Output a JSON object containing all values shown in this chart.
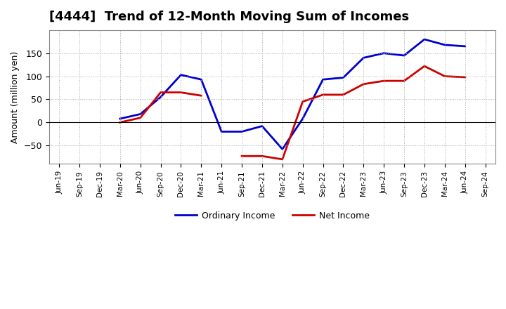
{
  "title": "[4444]  Trend of 12-Month Moving Sum of Incomes",
  "ylabel": "Amount (million yen)",
  "x_labels": [
    "Jun-19",
    "Sep-19",
    "Dec-19",
    "Mar-20",
    "Jun-20",
    "Sep-20",
    "Dec-20",
    "Mar-21",
    "Jun-21",
    "Sep-21",
    "Dec-21",
    "Mar-22",
    "Jun-22",
    "Sep-22",
    "Dec-22",
    "Mar-23",
    "Jun-23",
    "Sep-23",
    "Dec-23",
    "Mar-24",
    "Jun-24",
    "Sep-24"
  ],
  "ordinary_income": [
    null,
    null,
    null,
    8,
    18,
    55,
    103,
    93,
    -20,
    -20,
    -8,
    -58,
    8,
    93,
    97,
    140,
    150,
    145,
    180,
    168,
    165,
    null
  ],
  "net_income": [
    null,
    null,
    null,
    0,
    10,
    65,
    65,
    58,
    null,
    -73,
    -73,
    -80,
    45,
    60,
    60,
    83,
    90,
    90,
    122,
    100,
    98,
    null
  ],
  "ordinary_color": "#0000cc",
  "net_color": "#cc0000",
  "ylim": [
    -90,
    200
  ],
  "yticks": [
    -50,
    0,
    50,
    100,
    150
  ],
  "background_color": "#ffffff",
  "grid_color": "#aaaaaa",
  "title_fontsize": 13,
  "legend_labels": [
    "Ordinary Income",
    "Net Income"
  ]
}
